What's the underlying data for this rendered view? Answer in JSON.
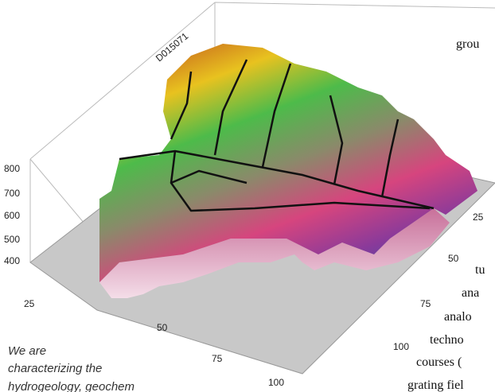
{
  "figure": {
    "label": "D015071",
    "z_axis_labels": [
      "800",
      "700",
      "600",
      "500",
      "400"
    ],
    "front_axis_labels": [
      "25",
      "50",
      "75",
      "100"
    ],
    "side_axis_labels": [
      "25",
      "50",
      "75",
      "100"
    ]
  },
  "body_text": {
    "right_column": [
      "grou",
      "tu",
      "ana",
      "analo",
      "techno",
      "courses (",
      "grating fiel"
    ],
    "left_caption": [
      "We are",
      "characterizing the",
      "hydrogeology, geochem"
    ]
  }
}
